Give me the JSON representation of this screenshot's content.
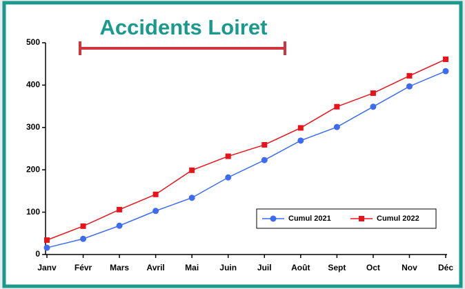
{
  "chart_data": {
    "type": "line",
    "title": "Accidents Loiret",
    "categories": [
      "Janv",
      "Févr",
      "Mars",
      "Avril",
      "Mai",
      "Juin",
      "Juil",
      "Août",
      "Sept",
      "Oct",
      "Nov",
      "Déc"
    ],
    "series": [
      {
        "name": "Cumul 2021",
        "color": "#3d6cf0",
        "marker": "circle",
        "values": [
          16,
          37,
          68,
          103,
          134,
          182,
          223,
          269,
          301,
          349,
          397,
          433
        ]
      },
      {
        "name": "Cumul 2022",
        "color": "#e8141c",
        "marker": "square",
        "values": [
          34,
          67,
          106,
          142,
          199,
          232,
          259,
          299,
          349,
          381,
          422,
          461
        ]
      }
    ],
    "ylim": [
      0,
      500
    ],
    "yticks": [
      0,
      100,
      200,
      300,
      400,
      500
    ],
    "grid": false,
    "legend": "lower right"
  }
}
